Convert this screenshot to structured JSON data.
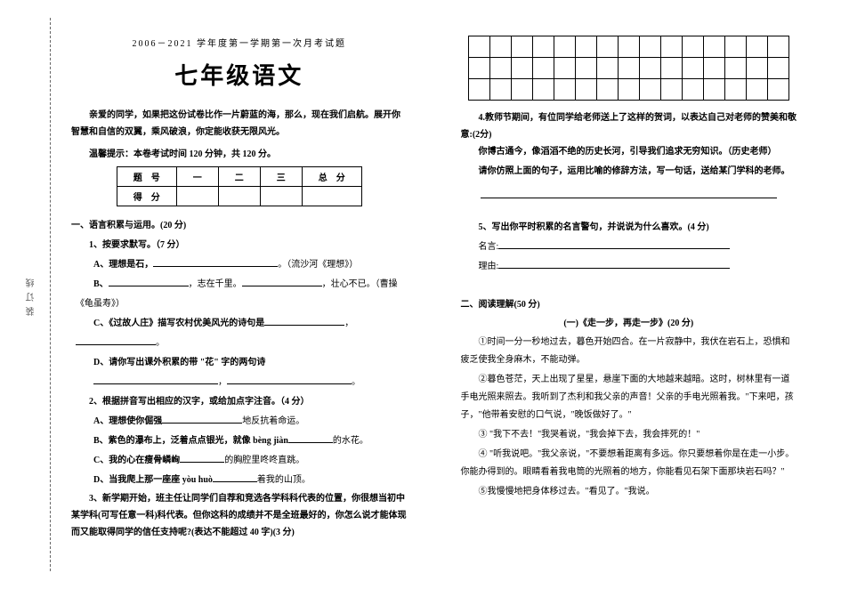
{
  "binding": "装订线",
  "left": {
    "subtitle": "2006－2021 学年度第一学期第一次月考试题",
    "title": "七年级语文",
    "intro": "亲爱的同学，如果把这份试卷比作一片蔚蓝的海，那么，现在我们启航。展开你智慧和自信的双翼，乘风破浪，你定能收获无限风光。",
    "tip": "温馨提示：本卷考试时间 120 分钟，共 120 分。",
    "table": {
      "h0": "题　号",
      "h1": "一",
      "h2": "二",
      "h3": "三",
      "h4": "总　分",
      "r0": "得　分"
    },
    "sec1": "一、语言积累与运用。(20 分)",
    "q1": "1、按要求默写。（7 分）",
    "q1a_pre": "A、理想是石，",
    "q1a_post": "。（流沙河《理想》）",
    "q1b_pre": "B、",
    "q1b_mid": "，志在千里。",
    "q1b_post": "，壮心不已。（曹操《龟虽寿》）",
    "q1c_pre": "C、《过故人庄》描写农村优美风光的诗句是",
    "q1c_post": "。",
    "q1d": "D、请你写出课外积累的带 \"花\" 字的两句诗",
    "q2": "2、根据拼音写出相应的汉字，或给加点字注音。（4 分）",
    "q2a_pre": "A、理想使你倔强",
    "q2a_post": "地反抗着命运。",
    "q2b_pre": "B、紫色的瀑布上，泛着点点银光，就像 bèng jiàn",
    "q2b_post": "的水花。",
    "q2c_pre": "C、我的心在瘦骨嶙峋",
    "q2c_post": "的胸腔里咚咚直跳。",
    "q2d_pre": "D、当我爬上那一座座 yòu huò",
    "q2d_post": "着我的山顶。",
    "q3": "3、新学期开始，班主任让同学们自荐和竞选各学科科代表的位置，你很想当初中某学科(可写任意一科)科代表。但你这科的成绩并不是全班最好的，你怎么说才能体现而又能取得同学的信任支持呢?(表达不能超过 40 字)(3 分)"
  },
  "right": {
    "grid": {
      "cols": 15,
      "rows": 3
    },
    "q4": "4.教师节期间，有位同学给老师送上了这样的贺词，以表达自己对老师的赞美和敬意:(2分)",
    "q4_ex": "你博古通今，像滔滔不绝的历史长河，引导我们追求无穷知识。（历史老师）",
    "q4_req": "请你仿照上面的句子，运用比喻的修辞方法，写一句话，送给某门学科的老师。",
    "q5": "5、写出你平时积累的名言警句，并说说为什么喜欢。(4 分)",
    "q5a": "名言:",
    "q5b": "理由:",
    "sec2": "二、阅读理解(50 分)",
    "passage_title": "(一)《走一步，再走一步》(20 分)",
    "p1": "①时间一分一秒地过去，暮色开始四合。在一片寂静中，我伏在岩石上，恐惧和疲乏使我全身麻木，不能动弹。",
    "p2": "②暮色苍茫，天上出现了星星，悬崖下面的大地越来越暗。这时，树林里有一道手电光照来照去。我听到了杰利和我父亲的声音！父亲的手电光照着我。\"下来吧，孩子，\"他带着安慰的口气说，\"晚饭做好了。\"",
    "p3": "③ \"我下不去！\"我哭着说，\"我会掉下去，我会摔死的！\"",
    "p4": "④ \"听我说吧。\"我父亲说，\"不要想着距离有多远。你只要想着你是在走一小步。你能办得到的。眼睛看着我电筒的光照着的地方，你能看见石架下面那块岩石吗？\"",
    "p5": "⑤我慢慢地把身体移过去。\"看见了。\"我说。"
  }
}
